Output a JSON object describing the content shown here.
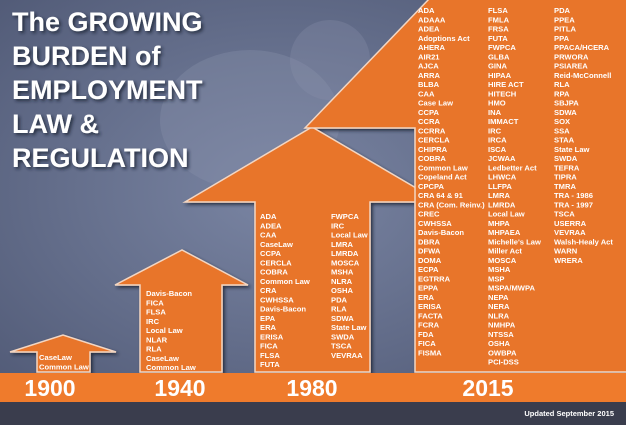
{
  "title": {
    "lines": [
      "The GROWING",
      "BURDEN of",
      "EMPLOYMENT",
      "LAW &",
      "REGULATION"
    ]
  },
  "eras": [
    {
      "year": "1900",
      "columns": [
        [
          "CaseLaw",
          "Common Law"
        ]
      ]
    },
    {
      "year": "1940",
      "columns": [
        [
          "Davis-Bacon",
          "FICA",
          "FLSA",
          "IRC",
          "Local Law",
          "NLAR",
          "RLA",
          "CaseLaw",
          "Common Law"
        ]
      ]
    },
    {
      "year": "1980",
      "columns": [
        [
          "ADA",
          "ADEA",
          "CAA",
          "CaseLaw",
          "CCPA",
          "CERCLA",
          "COBRA",
          "Common Law",
          "CRA",
          "CWHSSA",
          "Davis-Bacon",
          "EPA",
          "ERA",
          "ERISA",
          "FICA",
          "FLSA",
          "FUTA"
        ],
        [
          "FWPCA",
          "IRC",
          "Local Law",
          "LMRA",
          "LMRDA",
          "MOSCA",
          "MSHA",
          "NLRA",
          "OSHA",
          "PDA",
          "RLA",
          "SDWA",
          "State Law",
          "SWDA",
          "TSCA",
          "VEVRAA"
        ]
      ]
    },
    {
      "year": "2015",
      "columns": [
        [
          "ADA",
          "ADAAA",
          "ADEA",
          "Adoptions Act",
          "AHERA",
          "AIR21",
          "AJCA",
          "ARRA",
          "BLBA",
          "CAA",
          "Case Law",
          "CCPA",
          "CCRA",
          "CCRRA",
          "CERCLA",
          "CHIPRA",
          "COBRA",
          "Common Law",
          "Copeland Act",
          "CPCPA",
          "CRA 64 & 91",
          "CRA (Com. Reinv.)",
          "CREC",
          "CWHSSA",
          "Davis-Bacon",
          "DBRA",
          "DFWA",
          "DOMA",
          "ECPA",
          "EGTRRA",
          "EPPA",
          "ERA",
          "ERISA",
          "FACTA",
          "FCRA",
          "FDA",
          "FICA",
          "FISMA"
        ],
        [
          "FLSA",
          "FMLA",
          "FRSA",
          "FUTA",
          "FWPCA",
          "GLBA",
          "GINA",
          "HIPAA",
          "HIRE ACT",
          "HITECH",
          "HMO",
          "INA",
          "IMMACT",
          "IRC",
          "IRCA",
          "ISCA",
          "JCWAA",
          "Ledbetter Act",
          "LHWCA",
          "LLFPA",
          "LMRA",
          "LMRDA",
          "Local Law",
          "MHPA",
          "MHPAEA",
          "Michelle's Law",
          "Miller Act",
          "MOSCA",
          "MSHA",
          "MSP",
          "MSPA/MWPA",
          "NEPA",
          "NERA",
          "NLRA",
          "NMHPA",
          "NTSSA",
          "OSHA",
          "OWBPA",
          "PCI-DSS"
        ],
        [
          "PDA",
          "PPEA",
          "PITLA",
          "PPA",
          "PPACA/HCERA",
          "PRWORA",
          "PSIAREA",
          "Reid-McConnell",
          "RLA",
          "RPA",
          "SBJPA",
          "SDWA",
          "SOX",
          "SSA",
          "STAA",
          "State Law",
          "SWDA",
          "TEFRA",
          "TIPRA",
          "TMRA",
          "TRA - 1986",
          "TRA - 1997",
          "TSCA",
          "USERRA",
          "VEVRAA",
          "Walsh-Healy Act",
          "WARN",
          "WRERA"
        ]
      ]
    }
  ],
  "updated": "Updated September 2015"
}
